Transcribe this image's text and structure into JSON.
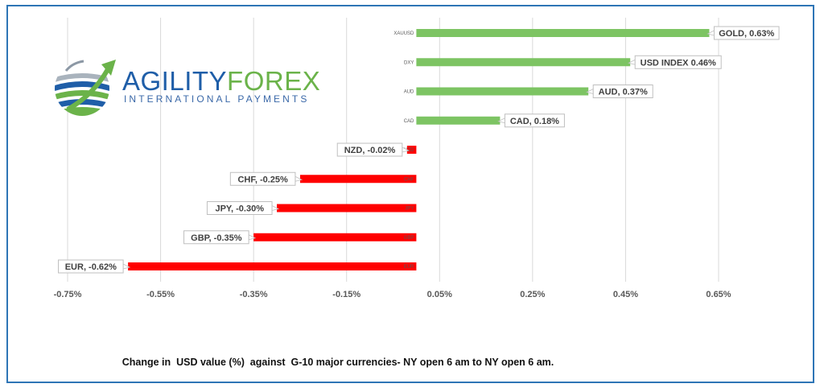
{
  "chart_data": {
    "type": "bar",
    "orientation": "horizontal",
    "categories": [
      "XAUUSD",
      "DXY",
      "AUD",
      "CAD",
      "NZD",
      "CHF",
      "JPY",
      "GBP",
      "EUR"
    ],
    "values": [
      0.63,
      0.46,
      0.37,
      0.18,
      -0.02,
      -0.25,
      -0.3,
      -0.35,
      -0.62
    ],
    "data_labels": [
      "GOLD, 0.63%",
      "USD INDEX 0.46%",
      "AUD, 0.37%",
      "CAD, 0.18%",
      "NZD, -0.02%",
      "CHF, -0.25%",
      "JPY, -0.30%",
      "GBP, -0.35%",
      "EUR, -0.62%"
    ],
    "x_ticks": [
      "-0.75%",
      "-0.55%",
      "-0.35%",
      "-0.15%",
      "0.05%",
      "0.25%",
      "0.45%",
      "0.65%"
    ],
    "xlim": [
      -0.75,
      0.75
    ],
    "grid": true,
    "colors": {
      "positive": "#7dc463",
      "negative": "#ff0000"
    }
  },
  "logo": {
    "word1": "AGILITY",
    "word2": "FOREX",
    "subtitle": "INTERNATIONAL PAYMENTS",
    "colors": {
      "blue": "#1f5ea8",
      "green": "#6bb34a"
    }
  },
  "caption": "Change in  USD value (%)  against  G-10 major currencies- NY open 6 am to NY open 6 am."
}
